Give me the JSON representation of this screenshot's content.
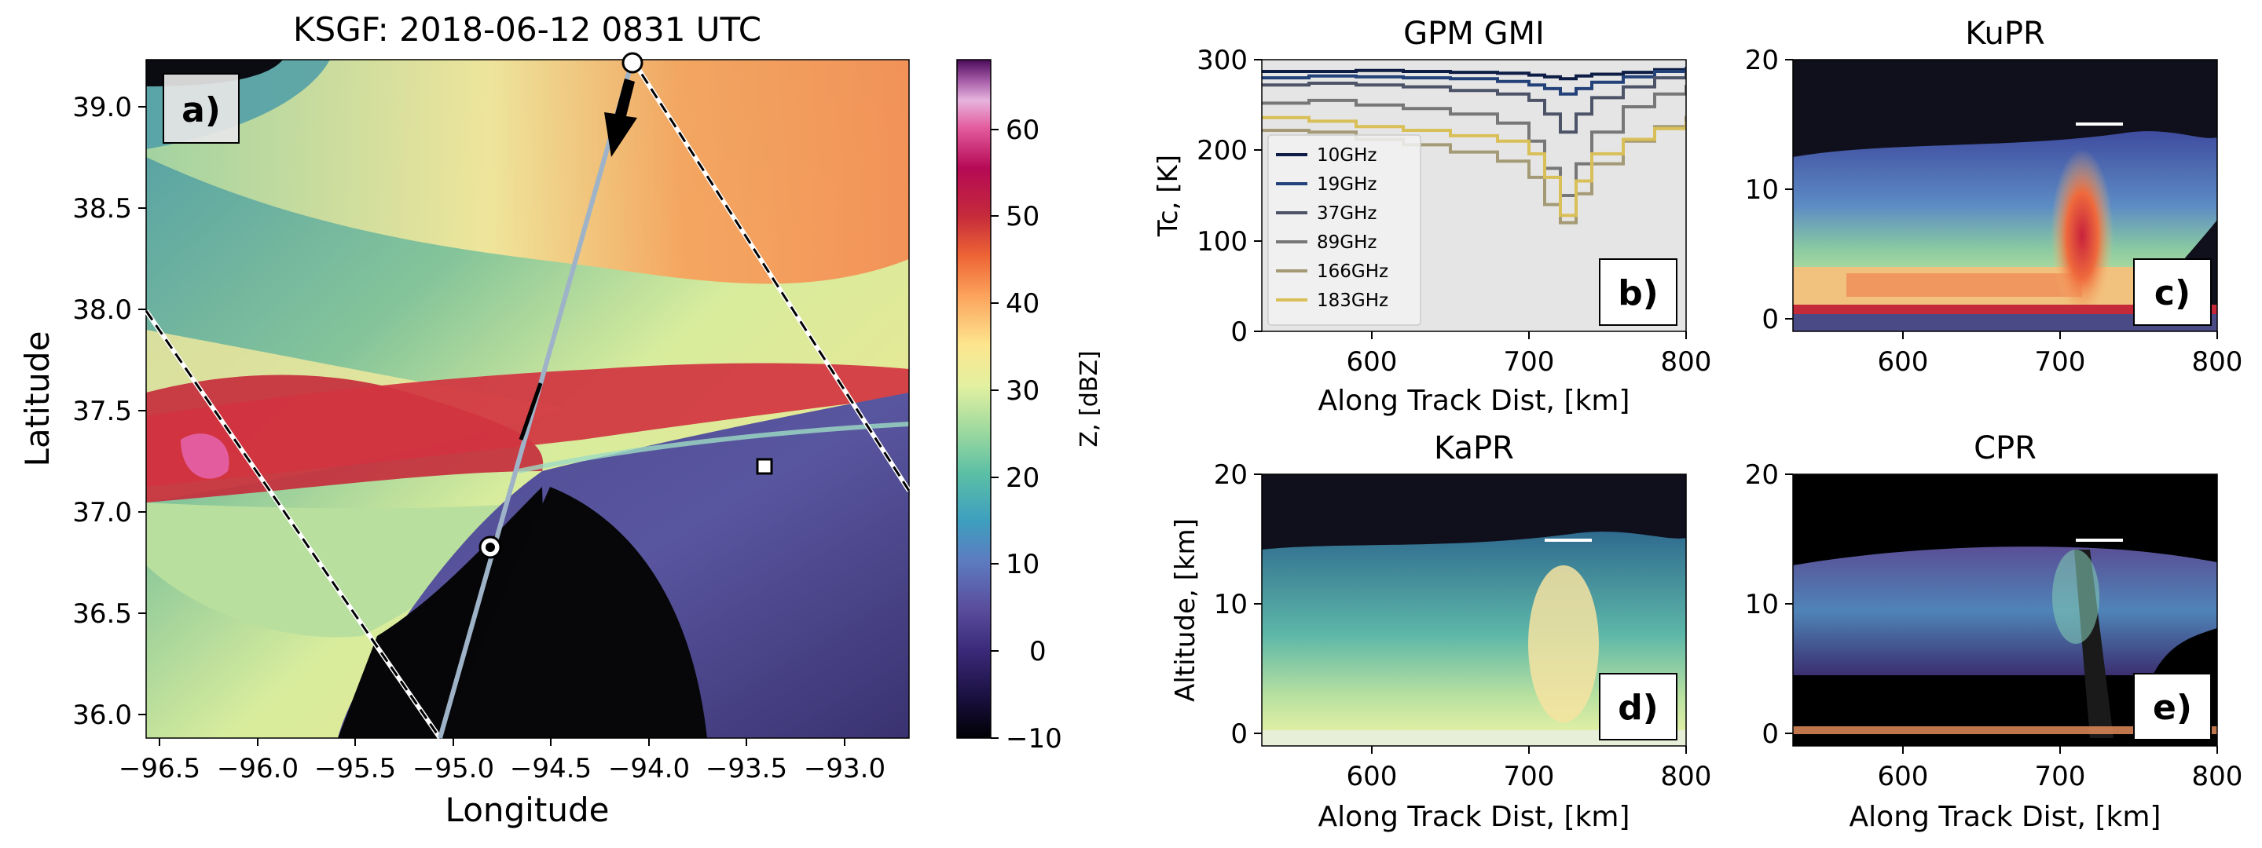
{
  "figure": {
    "panels": [
      {
        "id": "a",
        "title": "KSGF: 2018-06-12 0831 UTC",
        "panel_label": "a)",
        "xlabel": "Longitude",
        "ylabel": "Latitude",
        "x_ticks": [
          "−96.5",
          "−96.0",
          "−95.5",
          "−95.0",
          "−94.5",
          "−94.0",
          "−93.5",
          "−93.0"
        ],
        "y_ticks": [
          "36.0",
          "36.5",
          "37.0",
          "37.5",
          "38.0",
          "38.5",
          "39.0"
        ],
        "colorbar_label": "Z, [dBZ]",
        "colorbar_ticks": [
          "−10",
          "0",
          "10",
          "20",
          "30",
          "40",
          "50",
          "60"
        ]
      },
      {
        "id": "b",
        "title": "GPM GMI",
        "panel_label": "b)",
        "xlabel": "Along Track Dist, [km]",
        "ylabel": "Tc, [K]",
        "x_ticks": [
          "600",
          "700",
          "800"
        ],
        "y_ticks": [
          "0",
          "100",
          "200",
          "300"
        ],
        "legend": [
          "10GHz",
          "19GHz",
          "37GHz",
          "89GHz",
          "166GHz",
          "183GHz"
        ]
      },
      {
        "id": "c",
        "title": "KuPR",
        "panel_label": "c)",
        "x_ticks": [
          "600",
          "700",
          "800"
        ],
        "y_ticks": [
          "0",
          "10",
          "20"
        ]
      },
      {
        "id": "d",
        "title": "KaPR",
        "panel_label": "d)",
        "xlabel": "Along Track Dist, [km]",
        "ylabel": "Altitude, [km]",
        "x_ticks": [
          "600",
          "700",
          "800"
        ],
        "y_ticks": [
          "0",
          "10",
          "20"
        ]
      },
      {
        "id": "e",
        "title": "CPR",
        "panel_label": "e)",
        "xlabel": "Along Track Dist, [km]",
        "x_ticks": [
          "600",
          "700",
          "800"
        ],
        "y_ticks": [
          "0",
          "10",
          "20"
        ]
      }
    ]
  },
  "chart_data": [
    {
      "type": "heatmap",
      "panel": "a",
      "title": "KSGF: 2018-06-12 0831 UTC",
      "xlabel": "Longitude",
      "ylabel": "Latitude",
      "xlim": [
        -96.6,
        -92.7
      ],
      "ylim": [
        35.9,
        39.25
      ],
      "colorbar": {
        "label": "Z, [dBZ]",
        "range": [
          -10,
          68
        ],
        "colormap": "Spectral_r"
      },
      "tracks": [
        {
          "name": "ground-track",
          "points": [
            [
              -95.05,
              35.9
            ],
            [
              -94.1,
              39.25
            ]
          ],
          "color": "#9eb3c8"
        },
        {
          "name": "swath-edge-west",
          "points": [
            [
              -96.6,
              38.0
            ],
            [
              -95.0,
              35.9
            ]
          ],
          "style": "dashed"
        },
        {
          "name": "swath-edge-east",
          "points": [
            [
              -94.1,
              39.25
            ],
            [
              -92.7,
              37.1
            ]
          ],
          "style": "dashed"
        }
      ],
      "markers": [
        {
          "kind": "circle",
          "lon": -94.85,
          "lat": 36.83
        },
        {
          "kind": "circle",
          "lon": -94.1,
          "lat": 39.23
        },
        {
          "kind": "square",
          "lon": -93.4,
          "lat": 37.24
        }
      ]
    },
    {
      "type": "line",
      "panel": "b",
      "title": "GPM GMI",
      "xlabel": "Along Track Dist, [km]",
      "ylabel": "Tc, [K]",
      "xlim": [
        530,
        800
      ],
      "ylim": [
        0,
        300
      ],
      "legend_position": "lower left",
      "x": [
        530,
        560,
        590,
        620,
        650,
        680,
        700,
        710,
        720,
        730,
        740,
        760,
        780,
        800
      ],
      "series": [
        {
          "name": "10GHz",
          "color": "#0d1d45",
          "values": [
            287,
            287,
            288,
            287,
            286,
            285,
            283,
            281,
            279,
            282,
            284,
            286,
            289,
            291
          ]
        },
        {
          "name": "19GHz",
          "color": "#24427a",
          "values": [
            280,
            282,
            281,
            280,
            279,
            276,
            272,
            268,
            262,
            268,
            275,
            281,
            287,
            292
          ]
        },
        {
          "name": "37GHz",
          "color": "#4d5468",
          "values": [
            272,
            274,
            272,
            270,
            266,
            262,
            255,
            240,
            220,
            240,
            258,
            270,
            280,
            286
          ]
        },
        {
          "name": "89GHz",
          "color": "#777777",
          "values": [
            252,
            255,
            250,
            246,
            240,
            230,
            210,
            180,
            150,
            185,
            220,
            248,
            262,
            272
          ]
        },
        {
          "name": "166GHz",
          "color": "#a49a76",
          "values": [
            222,
            220,
            212,
            206,
            198,
            188,
            170,
            140,
            120,
            152,
            185,
            210,
            226,
            238
          ]
        },
        {
          "name": "183GHz",
          "color": "#d9bf57",
          "values": [
            236,
            232,
            226,
            222,
            216,
            210,
            196,
            170,
            128,
            166,
            196,
            212,
            224,
            232
          ]
        }
      ]
    },
    {
      "type": "heatmap",
      "panel": "c",
      "title": "KuPR",
      "xlim": [
        530,
        800
      ],
      "ylim": [
        -1,
        20
      ],
      "reference_line": {
        "x": [
          705,
          745
        ],
        "y": 15
      }
    },
    {
      "type": "heatmap",
      "panel": "d",
      "title": "KaPR",
      "xlabel": "Along Track Dist, [km]",
      "ylabel": "Altitude, [km]",
      "xlim": [
        530,
        800
      ],
      "ylim": [
        -1,
        20
      ],
      "reference_line": {
        "x": [
          705,
          735
        ],
        "y": 15
      }
    },
    {
      "type": "heatmap",
      "panel": "e",
      "title": "CPR",
      "xlabel": "Along Track Dist, [km]",
      "xlim": [
        530,
        800
      ],
      "ylim": [
        -1,
        20
      ],
      "reference_line": {
        "x": [
          705,
          735
        ],
        "y": 15
      }
    }
  ]
}
